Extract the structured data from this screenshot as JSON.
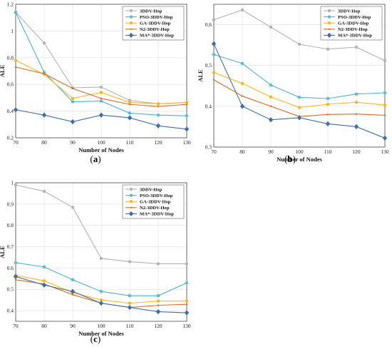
{
  "chart_data": [
    {
      "type": "line",
      "panel_label": "a",
      "xlabel": "Number of Nodes",
      "ylabel": "ALE",
      "x": [
        70,
        80,
        90,
        100,
        110,
        120,
        130
      ],
      "xlim": [
        70,
        130
      ],
      "ylim": [
        0.2,
        1.2
      ],
      "yticks": [
        "0.2",
        "0.4",
        "0.6",
        "0.8",
        "1",
        "1.2"
      ],
      "grid": true,
      "legend": "top-right",
      "series": [
        {
          "name": "3DDV-Hop",
          "color": "#b3b3b3",
          "marker": "circle",
          "values": [
            1.14,
            0.91,
            0.575,
            0.58,
            0.48,
            0.455,
            0.465
          ]
        },
        {
          "name": "PSO-3DDV-Hop",
          "color": "#4bb4cf",
          "marker": "star",
          "values": [
            1.14,
            0.69,
            0.47,
            0.475,
            0.385,
            0.37,
            0.365
          ]
        },
        {
          "name": "GA-3DDV-Hop",
          "color": "#f7b81c",
          "marker": "circle",
          "values": [
            0.78,
            0.675,
            0.495,
            0.54,
            0.465,
            0.455,
            0.465
          ]
        },
        {
          "name": "N2-3DDV-Hop",
          "color": "#e2681f",
          "marker": "dot",
          "values": [
            0.73,
            0.68,
            0.57,
            0.495,
            0.45,
            0.435,
            0.45
          ]
        },
        {
          "name": "MA*-3DDV-Hop",
          "color": "#3f6fa8",
          "marker": "diamond",
          "values": [
            0.41,
            0.37,
            0.32,
            0.37,
            0.35,
            0.29,
            0.265
          ]
        }
      ]
    },
    {
      "type": "line",
      "panel_label": "b",
      "xlabel": "Number of Nodes",
      "ylabel": "ALE",
      "x": [
        70,
        80,
        90,
        100,
        110,
        120,
        130
      ],
      "xlim": [
        70,
        130
      ],
      "ylim": [
        0.3,
        0.65
      ],
      "yticks": [
        "0.3",
        "0.4",
        "0.5",
        "0.6"
      ],
      "grid": true,
      "legend": "top-right",
      "series": [
        {
          "name": "3DDV-Hop",
          "color": "#b3b3b3",
          "marker": "circle",
          "values": [
            0.612,
            0.636,
            0.594,
            0.552,
            0.54,
            0.545,
            0.512
          ]
        },
        {
          "name": "PSO-3DDV-Hop",
          "color": "#4bb4cf",
          "marker": "star",
          "values": [
            0.527,
            0.505,
            0.452,
            0.422,
            0.419,
            0.43,
            0.433
          ]
        },
        {
          "name": "GA-3DDV-Hop",
          "color": "#f7b81c",
          "marker": "circle",
          "values": [
            0.483,
            0.456,
            0.423,
            0.397,
            0.405,
            0.41,
            0.403
          ]
        },
        {
          "name": "N2-3DDV-Hop",
          "color": "#e2681f",
          "marker": "dot",
          "values": [
            0.465,
            0.425,
            0.4,
            0.375,
            0.38,
            0.381,
            0.378
          ]
        },
        {
          "name": "MA*-3DDV-Hop",
          "color": "#3f6fa8",
          "marker": "diamond",
          "values": [
            0.553,
            0.4,
            0.367,
            0.372,
            0.357,
            0.35,
            0.322
          ]
        }
      ]
    },
    {
      "type": "line",
      "panel_label": "c",
      "xlabel": "Number of Nodes",
      "ylabel": "ALE",
      "x": [
        70,
        80,
        90,
        100,
        110,
        120,
        130
      ],
      "xlim": [
        70,
        130
      ],
      "ylim": [
        0.35,
        1.0
      ],
      "yticks": [
        "0.4",
        "0.5",
        "0.6",
        "0.7",
        "0.8",
        "0.9",
        "1"
      ],
      "grid": true,
      "legend": "top-right",
      "series": [
        {
          "name": "3DDV-Hop",
          "color": "#b3b3b3",
          "marker": "circle",
          "values": [
            0.99,
            0.96,
            0.885,
            0.645,
            0.63,
            0.62,
            0.62
          ]
        },
        {
          "name": "PSO-3DDV-Hop",
          "color": "#4bb4cf",
          "marker": "star",
          "values": [
            0.625,
            0.605,
            0.545,
            0.49,
            0.47,
            0.47,
            0.53
          ]
        },
        {
          "name": "GA-3DDV-Hop",
          "color": "#f7b81c",
          "marker": "circle",
          "values": [
            0.565,
            0.54,
            0.485,
            0.45,
            0.435,
            0.445,
            0.445
          ]
        },
        {
          "name": "N2-3DDV-Hop",
          "color": "#e2681f",
          "marker": "dot",
          "values": [
            0.545,
            0.525,
            0.475,
            0.435,
            0.415,
            0.425,
            0.43
          ]
        },
        {
          "name": "MA*-3DDV-Hop",
          "color": "#3f6fa8",
          "marker": "diamond",
          "values": [
            0.56,
            0.52,
            0.49,
            0.435,
            0.415,
            0.395,
            0.39
          ]
        }
      ]
    }
  ]
}
